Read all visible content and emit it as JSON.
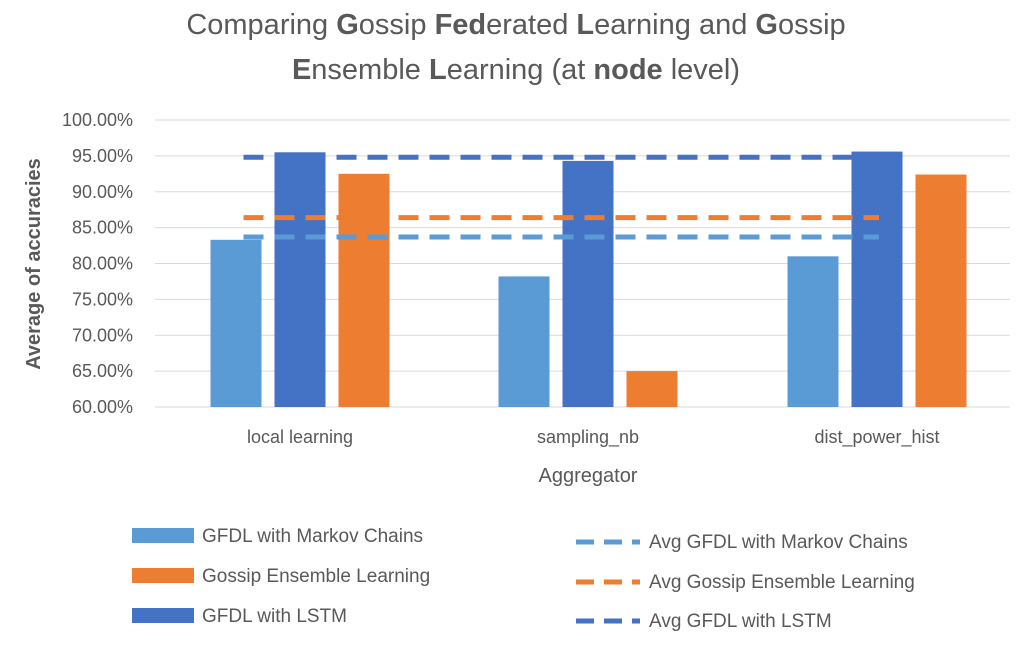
{
  "chart_data": {
    "type": "bar",
    "title": {
      "line1": [
        {
          "text": "Comparing ",
          "bold": false
        },
        {
          "text": "G",
          "bold": true
        },
        {
          "text": "ossip ",
          "bold": false
        },
        {
          "text": "Fed",
          "bold": true
        },
        {
          "text": "erated ",
          "bold": false
        },
        {
          "text": "L",
          "bold": true
        },
        {
          "text": "earning and ",
          "bold": false
        },
        {
          "text": "G",
          "bold": true
        },
        {
          "text": "ossip",
          "bold": false
        }
      ],
      "line2": [
        {
          "text": "E",
          "bold": true
        },
        {
          "text": "nsemble ",
          "bold": false
        },
        {
          "text": "L",
          "bold": true
        },
        {
          "text": "earning (at ",
          "bold": false
        },
        {
          "text": "node",
          "bold": true
        },
        {
          "text": " level)",
          "bold": false
        }
      ]
    },
    "xlabel": "Aggregator",
    "ylabel": "Average of accuracies",
    "ylim": [
      0.6,
      1.0
    ],
    "yticks": [
      "60.00%",
      "65.00%",
      "70.00%",
      "75.00%",
      "80.00%",
      "85.00%",
      "90.00%",
      "95.00%",
      "100.00%"
    ],
    "grid": true,
    "legend_position": "bottom",
    "categories": [
      "local learning",
      "sampling_nb",
      "dist_power_hist"
    ],
    "series": [
      {
        "name": "GFDL with Markov Chains",
        "color": "#5B9BD5",
        "values": [
          0.833,
          0.782,
          0.81
        ]
      },
      {
        "name": "GFDL with LSTM",
        "color": "#4472C4",
        "values": [
          0.955,
          0.943,
          0.956
        ]
      },
      {
        "name": "Gossip Ensemble Learning",
        "color": "#ED7D31",
        "values": [
          0.925,
          0.65,
          0.924
        ]
      }
    ],
    "average_lines": [
      {
        "name": "Avg GFDL with Markov Chains",
        "color": "#5B9BD5",
        "value": 0.837
      },
      {
        "name": "Avg Gossip Ensemble Learning",
        "color": "#ED7D31",
        "value": 0.864
      },
      {
        "name": "Avg GFDL with LSTM",
        "color": "#4472C4",
        "value": 0.948
      }
    ]
  },
  "legend": {
    "bars": [
      {
        "label": "GFDL with Markov Chains",
        "color": "#5B9BD5"
      },
      {
        "label": "Gossip Ensemble Learning",
        "color": "#ED7D31"
      },
      {
        "label": "GFDL with LSTM",
        "color": "#4472C4"
      }
    ],
    "lines": [
      {
        "label": "Avg GFDL with Markov Chains",
        "color": "#5B9BD5"
      },
      {
        "label": "Avg Gossip Ensemble Learning",
        "color": "#ED7D31"
      },
      {
        "label": "Avg GFDL with LSTM",
        "color": "#4472C4"
      }
    ]
  }
}
